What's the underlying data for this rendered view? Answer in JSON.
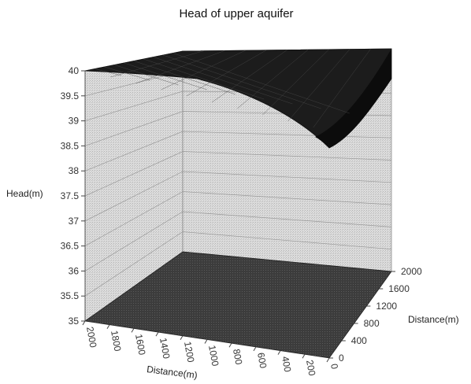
{
  "chart_data": {
    "type": "surface",
    "title": "Head of upper aquifer",
    "zlabel": "Head(m)",
    "xlabel": "Distance(m)",
    "ylabel": "Distance(m)",
    "zlim": [
      35,
      40
    ],
    "z_ticks": [
      "35",
      "35.5",
      "36",
      "36.5",
      "37",
      "37.5",
      "38",
      "38.5",
      "39",
      "39.5",
      "40"
    ],
    "x_ticks": [
      "2000",
      "1800",
      "1600",
      "1400",
      "1200",
      "1000",
      "800",
      "600",
      "400",
      "200",
      "0"
    ],
    "y_ticks": [
      "0",
      "400",
      "800",
      "1200",
      "1600",
      "2000"
    ],
    "surface": {
      "description_values": {
        "max_head": 40,
        "min_head": 38.3,
        "min_location_x": 0,
        "min_location_y": 0
      }
    },
    "grid": true,
    "colors": {
      "surface": "#1e1e1e",
      "floor": "#3a3a3a",
      "walls": "#d4d4d4",
      "grid": "#aaaaaa"
    }
  }
}
